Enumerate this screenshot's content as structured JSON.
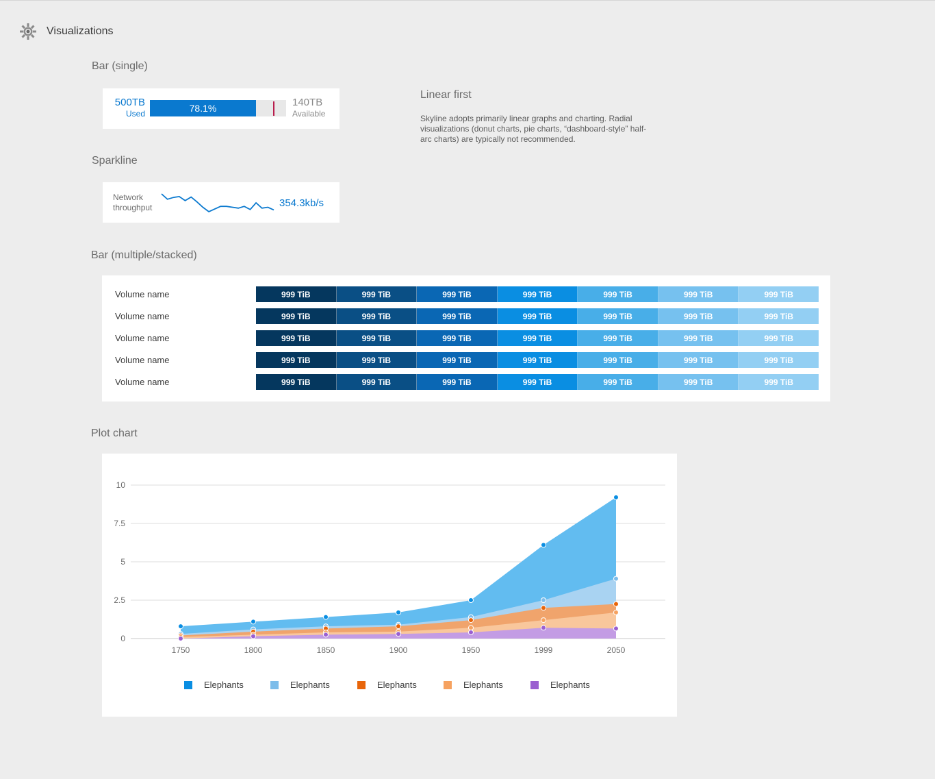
{
  "header": {
    "title": "Visualizations"
  },
  "sections": {
    "bar_single": "Bar (single)",
    "sparkline": "Sparkline",
    "bar_stacked": "Bar (multiple/stacked)",
    "plot": "Plot chart"
  },
  "bar_single": {
    "used_value": "500TB",
    "used_label": "Used",
    "percent_label": "78.1%",
    "percent": 0.781,
    "marker": 0.905,
    "available_value": "140TB",
    "available_label": "Available",
    "fill_color": "#0a79cf",
    "marker_color": "#b81c4c"
  },
  "sparkline": {
    "label": "Network throughput",
    "value": "354.3kb/s",
    "points": [
      6.0,
      4.8,
      5.2,
      5.4,
      4.5,
      5.3,
      4.2,
      3.0,
      2.0,
      2.6,
      3.2,
      3.2,
      3.0,
      2.8,
      3.2,
      2.5,
      4.0,
      2.8,
      3.0,
      2.4
    ]
  },
  "linear_first": {
    "title": "Linear first",
    "body": "Skyline adopts primarily linear graphs and charting. Radial visualizations (donut charts, pie charts, “dashboard-style” half-arc charts) are typically not recommended."
  },
  "stacked": {
    "colors": [
      "#05375e",
      "#0a4f85",
      "#0a67b4",
      "#0a8ee2",
      "#48aee8",
      "#76c1ef",
      "#93cff3"
    ],
    "rows": [
      {
        "name": "Volume name",
        "values": [
          "999 TiB",
          "999 TiB",
          "999 TiB",
          "999 TiB",
          "999 TiB",
          "999 TiB",
          "999 TiB"
        ]
      },
      {
        "name": "Volume name",
        "values": [
          "999 TiB",
          "999 TiB",
          "999 TiB",
          "999 TiB",
          "999 TiB",
          "999 TiB",
          "999 TiB"
        ]
      },
      {
        "name": "Volume name",
        "values": [
          "999 TiB",
          "999 TiB",
          "999 TiB",
          "999 TiB",
          "999 TiB",
          "999 TiB",
          "999 TiB"
        ]
      },
      {
        "name": "Volume name",
        "values": [
          "999 TiB",
          "999 TiB",
          "999 TiB",
          "999 TiB",
          "999 TiB",
          "999 TiB",
          "999 TiB"
        ]
      },
      {
        "name": "Volume name",
        "values": [
          "999 TiB",
          "999 TiB",
          "999 TiB",
          "999 TiB",
          "999 TiB",
          "999 TiB",
          "999 TiB"
        ]
      }
    ]
  },
  "chart_data": {
    "type": "area",
    "title": "",
    "xlabel": "",
    "ylabel": "",
    "ylim": [
      0,
      10
    ],
    "yticks": [
      "0",
      "2.5",
      "5",
      "7.5",
      "10"
    ],
    "categories": [
      "1750",
      "1800",
      "1850",
      "1900",
      "1950",
      "1999",
      "2050"
    ],
    "grid": true,
    "legend_position": "bottom",
    "series": [
      {
        "name": "Elephants",
        "color": "#0a8ee2",
        "fill": "#62bcf0",
        "values": [
          0.8,
          1.1,
          1.4,
          1.7,
          2.5,
          6.1,
          9.2
        ]
      },
      {
        "name": "Elephants",
        "color": "#7dbdea",
        "fill": "#a9d3f2",
        "values": [
          0.3,
          0.6,
          0.8,
          0.9,
          1.4,
          2.5,
          3.9
        ]
      },
      {
        "name": "Elephants",
        "color": "#e8650a",
        "fill": "#f0a46c",
        "values": [
          0.2,
          0.45,
          0.65,
          0.8,
          1.2,
          2.0,
          2.25
        ]
      },
      {
        "name": "Elephants",
        "color": "#f6a260",
        "fill": "#f9c79c",
        "values": [
          0.1,
          0.25,
          0.4,
          0.45,
          0.7,
          1.2,
          1.7
        ]
      },
      {
        "name": "Elephants",
        "color": "#9a5fd0",
        "fill": "#c39ce4",
        "values": [
          0.0,
          0.15,
          0.25,
          0.3,
          0.4,
          0.7,
          0.65
        ]
      }
    ]
  }
}
